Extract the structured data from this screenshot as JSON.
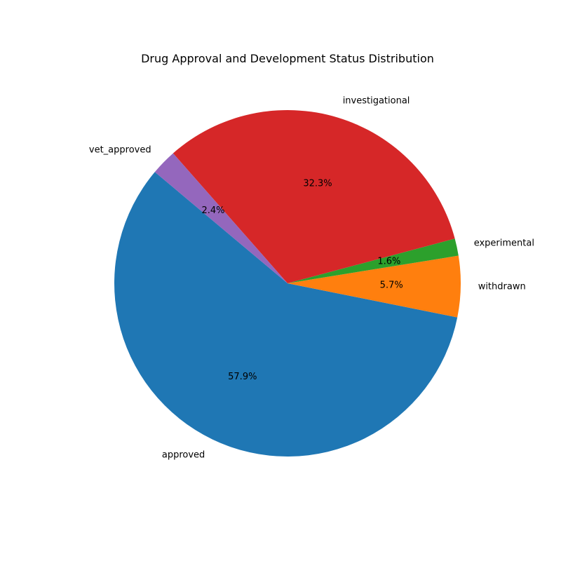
{
  "chart_data": {
    "type": "pie",
    "title": "Drug Approval and Development Status Distribution",
    "start_angle_deg": 140,
    "direction": "counterclockwise",
    "slices": [
      {
        "label": "approved",
        "value": 57.9,
        "pct_label": "57.9%",
        "color": "#1f77b4"
      },
      {
        "label": "withdrawn",
        "value": 5.7,
        "pct_label": "5.7%",
        "color": "#ff7f0e"
      },
      {
        "label": "experimental",
        "value": 1.6,
        "pct_label": "1.6%",
        "color": "#2ca02c"
      },
      {
        "label": "investigational",
        "value": 32.3,
        "pct_label": "32.3%",
        "color": "#d62728"
      },
      {
        "label": "vet_approved",
        "value": 2.4,
        "pct_label": "2.4%",
        "color": "#9467bd"
      }
    ]
  }
}
